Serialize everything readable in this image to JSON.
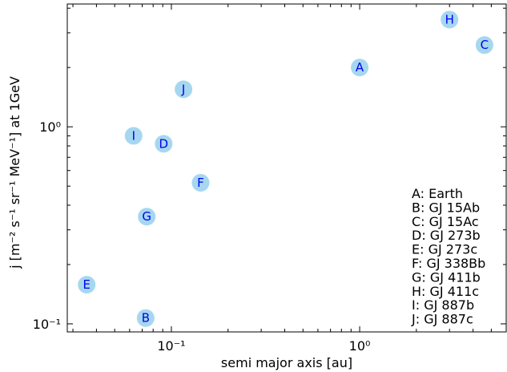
{
  "chart_data": {
    "type": "scatter",
    "xlabel": "semi major axis [au]",
    "ylabel": "j [m⁻² s⁻¹ sr⁻¹ MeV⁻¹] at 1GeV",
    "xscale": "log",
    "yscale": "log",
    "xlim": [
      0.028,
      6.0
    ],
    "ylim": [
      0.091,
      4.2
    ],
    "x_ticks": [
      {
        "value": 0.1,
        "label": "10⁻¹"
      },
      {
        "value": 1,
        "label": "10⁰"
      }
    ],
    "y_ticks": [
      {
        "value": 0.1,
        "label": "10⁻¹"
      },
      {
        "value": 1,
        "label": "10⁰"
      }
    ],
    "grid": false,
    "marker_color": "#a6d7f0",
    "marker_text_color": "#0000ee",
    "points": [
      {
        "id": "A",
        "x": 1.0,
        "y": 2.0
      },
      {
        "id": "B",
        "x": 0.073,
        "y": 0.107
      },
      {
        "id": "C",
        "x": 4.6,
        "y": 2.6
      },
      {
        "id": "D",
        "x": 0.091,
        "y": 0.82
      },
      {
        "id": "E",
        "x": 0.0355,
        "y": 0.158
      },
      {
        "id": "F",
        "x": 0.143,
        "y": 0.52
      },
      {
        "id": "G",
        "x": 0.074,
        "y": 0.35
      },
      {
        "id": "H",
        "x": 3.0,
        "y": 3.5
      },
      {
        "id": "I",
        "x": 0.063,
        "y": 0.9
      },
      {
        "id": "J",
        "x": 0.116,
        "y": 1.55
      }
    ],
    "legend_position": "lower-right",
    "legend": [
      "A: Earth",
      "B: GJ 15Ab",
      "C: GJ 15Ac",
      "D: GJ 273b",
      "E: GJ 273c",
      "F: GJ 338Bb",
      "G: GJ 411b",
      "H: GJ 411c",
      "I: GJ 887b",
      "J: GJ 887c"
    ]
  }
}
